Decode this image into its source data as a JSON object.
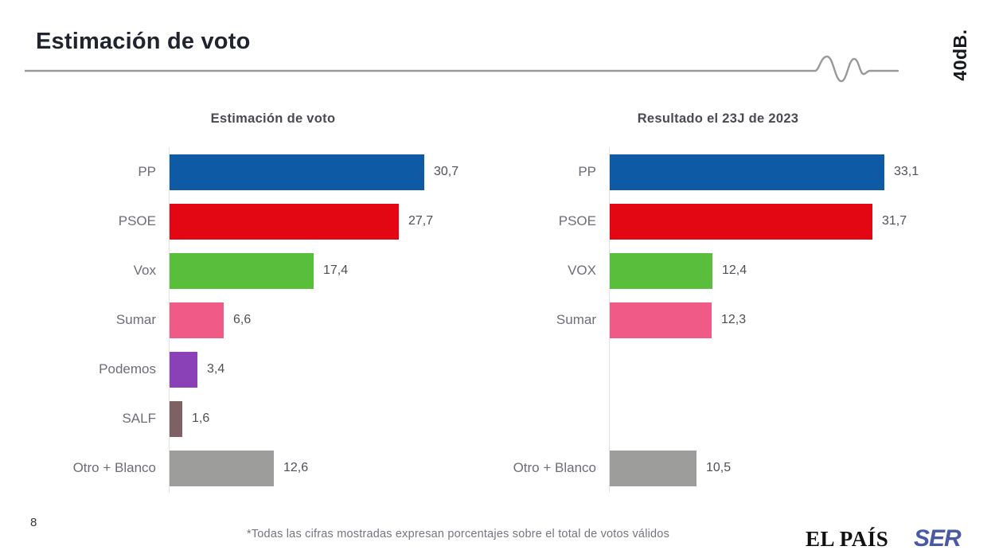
{
  "page": {
    "title": "Estimación de voto",
    "brand": "40dB.",
    "page_number": "8",
    "footnote": "*Todas las cifras mostradas expresan porcentajes sobre el total de votos válidos",
    "logo_elpais": "EL PAÍS",
    "logo_ser": "SER"
  },
  "colors": {
    "pp_blue": "#0E5AA5",
    "psoe_red": "#E30613",
    "vox_green": "#58BE3B",
    "sumar_pink": "#EF5B86",
    "podemos_purple": "#8A41B8",
    "salf_brown": "#7E6162",
    "otros_gray": "#9D9D9B",
    "divider_gray": "#999999",
    "ser_blue": "#4A59A6"
  },
  "chart_data": [
    {
      "type": "bar",
      "orientation": "horizontal",
      "title": "Estimación de voto",
      "categories": [
        "PP",
        "PSOE",
        "Vox",
        "Sumar",
        "Podemos",
        "SALF",
        "Otro + Blanco"
      ],
      "values": [
        30.7,
        27.7,
        17.4,
        6.6,
        3.4,
        1.6,
        12.6
      ],
      "value_labels": [
        "30,7",
        "27,7",
        "17,4",
        "6,6",
        "3,4",
        "1,6",
        "12,6"
      ],
      "colors": [
        "#0E5AA5",
        "#E30613",
        "#58BE3B",
        "#EF5B86",
        "#8A41B8",
        "#7E6162",
        "#9D9D9B"
      ],
      "xlim": [
        0,
        38
      ],
      "grid": false,
      "legend": false
    },
    {
      "type": "bar",
      "orientation": "horizontal",
      "title": "Resultado el 23J de 2023",
      "categories": [
        "PP",
        "PSOE",
        "VOX",
        "Sumar",
        "",
        "",
        "Otro + Blanco"
      ],
      "values": [
        33.1,
        31.7,
        12.4,
        12.3,
        null,
        null,
        10.5
      ],
      "value_labels": [
        "33,1",
        "31,7",
        "12,4",
        "12,3",
        "",
        "",
        "10,5"
      ],
      "colors": [
        "#0E5AA5",
        "#E30613",
        "#58BE3B",
        "#EF5B86",
        "",
        "",
        "#9D9D9B"
      ],
      "xlim": [
        0,
        38
      ],
      "grid": false,
      "legend": false
    }
  ]
}
